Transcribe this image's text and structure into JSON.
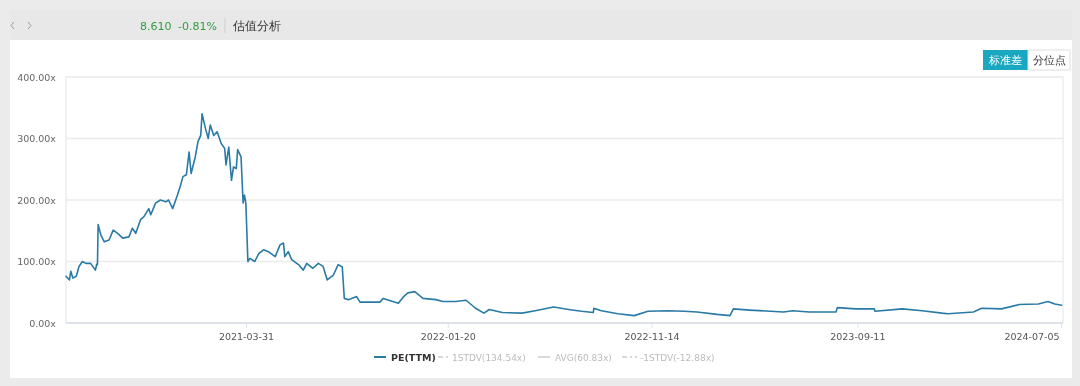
{
  "chart_data": {
    "type": "line",
    "title": "估值分析",
    "annotations": [
      "8.610",
      "-0.81%",
      "标准差",
      "分位点",
      "1STDV(134.54x)",
      "AVG(60.83x)",
      "-1STDV(-12.88x)"
    ],
    "x": [
      "2020-07-10",
      "2020-07-15",
      "2020-07-17",
      "2020-07-20",
      "2020-07-25",
      "2020-07-29",
      "2020-08-03",
      "2020-08-08",
      "2020-08-15",
      "2020-08-22",
      "2020-08-24",
      "2020-08-25",
      "2020-08-26",
      "2020-08-30",
      "2020-09-04",
      "2020-09-11",
      "2020-09-17",
      "2020-09-23",
      "2020-10-01",
      "2020-10-10",
      "2020-10-15",
      "2020-10-20",
      "2020-10-27",
      "2020-11-01",
      "2020-11-08",
      "2020-11-11",
      "2020-11-18",
      "2020-11-25",
      "2020-12-03",
      "2020-12-07",
      "2020-12-13",
      "2020-12-20",
      "2020-12-24",
      "2020-12-28",
      "2021-01-02",
      "2021-01-06",
      "2021-01-09",
      "2021-01-15",
      "2021-01-19",
      "2021-01-23",
      "2021-01-25",
      "2021-01-30",
      "2021-02-03",
      "2021-02-06",
      "2021-02-11",
      "2021-02-16",
      "2021-02-22",
      "2021-02-27",
      "2021-03-01",
      "2021-03-05",
      "2021-03-09",
      "2021-03-12",
      "2021-03-16",
      "2021-03-18",
      "2021-03-23",
      "2021-03-26",
      "2021-03-28",
      "2021-03-30",
      "2021-04-02",
      "2021-04-05",
      "2021-04-12",
      "2021-04-18",
      "2021-04-25",
      "2021-05-02",
      "2021-05-12",
      "2021-05-19",
      "2021-05-24",
      "2021-05-26",
      "2021-05-31",
      "2021-06-05",
      "2021-06-15",
      "2021-06-22",
      "2021-06-27",
      "2021-07-06",
      "2021-07-14",
      "2021-07-21",
      "2021-07-27",
      "2021-08-05",
      "2021-08-12",
      "2021-08-18",
      "2021-08-21",
      "2021-08-27",
      "2021-09-08",
      "2021-09-13",
      "2021-10-12",
      "2021-10-17",
      "2021-11-08",
      "2021-11-15",
      "2021-11-22",
      "2021-12-02",
      "2021-12-14",
      "2022-01-02",
      "2022-01-12",
      "2022-01-31",
      "2022-02-15",
      "2022-03-01",
      "2022-03-13",
      "2022-03-21",
      "2022-04-09",
      "2022-05-08",
      "2022-05-27",
      "2022-06-23",
      "2022-07-15",
      "2022-08-03",
      "2022-08-20",
      "2022-08-21",
      "2022-09-01",
      "2022-09-25",
      "2022-10-19",
      "2022-11-08",
      "2022-12-07",
      "2022-12-31",
      "2023-01-19",
      "2023-02-17",
      "2023-03-08",
      "2023-03-13",
      "2023-04-06",
      "2023-05-25",
      "2023-06-08",
      "2023-07-02",
      "2023-08-10",
      "2023-08-12",
      "2023-09-08",
      "2023-10-05",
      "2023-10-06",
      "2023-11-15",
      "2023-12-14",
      "2024-01-12",
      "2024-01-21",
      "2024-02-27",
      "2024-03-10",
      "2024-04-08",
      "2024-05-04",
      "2024-06-01",
      "2024-06-15",
      "2024-06-25",
      "2024-07-05"
    ],
    "series": [
      {
        "name": "PE(TTM)",
        "color": "#2a7aa6",
        "values": [
          76,
          70,
          84,
          73,
          76,
          92,
          100,
          97,
          97,
          86,
          96,
          95,
          160,
          143,
          132,
          135,
          151,
          146,
          138,
          140,
          154,
          146,
          168,
          173,
          186,
          176,
          195,
          200,
          197,
          200,
          186,
          208,
          222,
          238,
          241,
          278,
          243,
          270,
          295,
          305,
          340,
          316,
          300,
          322,
          305,
          311,
          292,
          284,
          257,
          286,
          232,
          254,
          251,
          282,
          270,
          195,
          208,
          195,
          100,
          105,
          100,
          113,
          119,
          116,
          108,
          127,
          130,
          108,
          116,
          103,
          95,
          86,
          97,
          89,
          97,
          92,
          70,
          78,
          95,
          91,
          40,
          38,
          43,
          34,
          34,
          40,
          32,
          42,
          49,
          51,
          40,
          38,
          35,
          35,
          37,
          24,
          16,
          22,
          17,
          16,
          20,
          26,
          22,
          19,
          17,
          24,
          20,
          15,
          12,
          19,
          20,
          19,
          18,
          14,
          12,
          23,
          21,
          18,
          20,
          18,
          18,
          25,
          23,
          23,
          19,
          23,
          20,
          16,
          15,
          18,
          24,
          23,
          30,
          31,
          35,
          31,
          29
        ]
      }
    ],
    "xlim": [
      "2020-07-10",
      "2024-07-07"
    ],
    "xticks": [
      {
        "value": "2021-03-31",
        "label": "2021-03-31"
      },
      {
        "value": "2022-01-20",
        "label": "2022-01-20"
      },
      {
        "value": "2022-11-14",
        "label": "2022-11-14"
      },
      {
        "value": "2023-09-11",
        "label": "2023-09-11"
      },
      {
        "value": "2024-07-05",
        "label": "2024-07-05"
      }
    ],
    "ylim": [
      0,
      400
    ],
    "yticks": [
      {
        "value": 0,
        "label": "0.00x"
      },
      {
        "value": 100,
        "label": "100.00x"
      },
      {
        "value": 200,
        "label": "200.00x"
      },
      {
        "value": 300,
        "label": "300.00x"
      },
      {
        "value": 400,
        "label": "400.00x"
      }
    ],
    "grid": "y",
    "legend": "bottom",
    "marker": "none",
    "line_style": "solid"
  }
}
